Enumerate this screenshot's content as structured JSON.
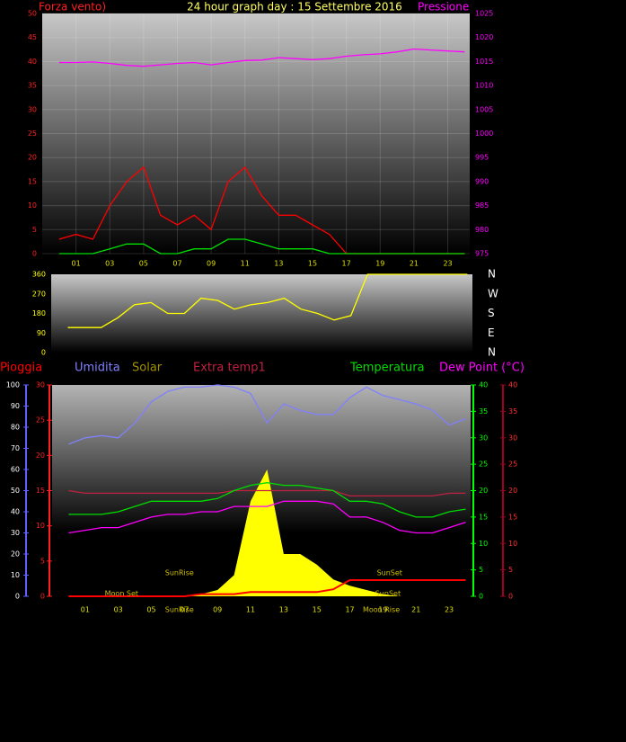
{
  "chart_data": [
    {
      "type": "line",
      "title": "24 hour graph day : 15 Settembre 2016",
      "y_label": "Forza vento)",
      "y2_label": "Pressione",
      "x": [
        0,
        1,
        2,
        3,
        4,
        5,
        6,
        7,
        8,
        9,
        10,
        11,
        12,
        13,
        14,
        15,
        16,
        17,
        18,
        19,
        20,
        21,
        22,
        23,
        24
      ],
      "xlim": [
        -1,
        24.3
      ],
      "xticks": [
        {
          "value": 1,
          "label": "01"
        },
        {
          "value": 3,
          "label": "03"
        },
        {
          "value": 5,
          "label": "05"
        },
        {
          "value": 7,
          "label": "07"
        },
        {
          "value": 9,
          "label": "09"
        },
        {
          "value": 11,
          "label": "11"
        },
        {
          "value": 13,
          "label": "13"
        },
        {
          "value": 15,
          "label": "15"
        },
        {
          "value": 17,
          "label": "17"
        },
        {
          "value": 19,
          "label": "19"
        },
        {
          "value": 21,
          "label": "21"
        },
        {
          "value": 23,
          "label": "23"
        }
      ],
      "ylim": [
        0,
        50
      ],
      "yticks": [
        0,
        5,
        10,
        15,
        20,
        25,
        30,
        35,
        40,
        45,
        50
      ],
      "y2lim": [
        975,
        1025
      ],
      "y2ticks": [
        975,
        980,
        985,
        990,
        995,
        1000,
        1005,
        1010,
        1015,
        1020,
        1025
      ],
      "grid": true,
      "series": [
        {
          "color": "#ff0000",
          "axis": "y",
          "values": [
            3,
            4,
            3,
            10,
            15,
            18,
            8,
            6,
            8,
            5,
            15,
            18,
            12,
            8,
            8,
            6,
            4,
            0,
            0,
            0,
            0,
            0,
            0,
            0,
            0
          ]
        },
        {
          "color": "#00e000",
          "axis": "y",
          "values": [
            0,
            0,
            0,
            1,
            2,
            2,
            0,
            0,
            1,
            1,
            3,
            3,
            2,
            1,
            1,
            1,
            0,
            0,
            0,
            0,
            0,
            0,
            0,
            0,
            0
          ]
        },
        {
          "color": "#ff00ff",
          "axis": "y2",
          "values": [
            1014.8,
            1014.8,
            1014.9,
            1014.6,
            1014.2,
            1014.0,
            1014.3,
            1014.6,
            1014.8,
            1014.3,
            1014.8,
            1015.2,
            1015.3,
            1015.8,
            1015.6,
            1015.4,
            1015.6,
            1016.1,
            1016.4,
            1016.6,
            1017.0,
            1017.6,
            1017.4,
            1017.2,
            1017.0
          ]
        }
      ]
    },
    {
      "type": "line",
      "x": [
        0,
        1,
        2,
        3,
        4,
        5,
        6,
        7,
        8,
        9,
        10,
        11,
        12,
        13,
        14,
        15,
        16,
        17,
        18,
        19,
        20,
        21,
        22,
        23,
        24
      ],
      "xlim": [
        -1,
        24.3
      ],
      "ylim": [
        0,
        360
      ],
      "yticks": [
        0,
        90,
        180,
        270,
        360
      ],
      "y2lim": [
        0,
        360
      ],
      "y2ticks": [
        {
          "value": 0,
          "label": "N"
        },
        {
          "value": 90,
          "label": "E"
        },
        {
          "value": 180,
          "label": "S"
        },
        {
          "value": 270,
          "label": "W"
        },
        {
          "value": 360,
          "label": "N"
        }
      ],
      "series": [
        {
          "color": "#ffff00",
          "axis": "y",
          "values": [
            115,
            115,
            115,
            160,
            220,
            230,
            180,
            180,
            250,
            240,
            200,
            220,
            230,
            250,
            200,
            180,
            150,
            170,
            360,
            360,
            360,
            360,
            360,
            360,
            360
          ]
        }
      ]
    },
    {
      "type": "line",
      "x": [
        0,
        1,
        2,
        3,
        4,
        5,
        6,
        7,
        8,
        9,
        10,
        11,
        12,
        13,
        14,
        15,
        16,
        17,
        18,
        19,
        20,
        21,
        22,
        23,
        24
      ],
      "xlim": [
        -1,
        24.3
      ],
      "xticks": [
        {
          "value": 1,
          "label": "01"
        },
        {
          "value": 3,
          "label": "03"
        },
        {
          "value": 5,
          "label": "05"
        },
        {
          "value": 7,
          "label": "07"
        },
        {
          "value": 9,
          "label": "09"
        },
        {
          "value": 11,
          "label": "11"
        },
        {
          "value": 13,
          "label": "13"
        },
        {
          "value": 15,
          "label": "15"
        },
        {
          "value": 17,
          "label": "17"
        },
        {
          "value": 19,
          "label": "19"
        },
        {
          "value": 21,
          "label": "21"
        },
        {
          "value": 23,
          "label": "23"
        }
      ],
      "ylim": [
        0,
        100
      ],
      "yticks": [
        0,
        10,
        20,
        30,
        40,
        50,
        60,
        70,
        80,
        90,
        100
      ],
      "y3lim": [
        0,
        30
      ],
      "y3ticks": [
        0,
        5,
        10,
        15,
        20,
        25,
        30
      ],
      "y2lim": [
        0,
        40
      ],
      "y2ticks": [
        0,
        5,
        10,
        15,
        20,
        25,
        30,
        35,
        40
      ],
      "y4lim": [
        0,
        40
      ],
      "y4ticks": [
        0,
        5,
        10,
        15,
        20,
        25,
        30,
        35,
        40
      ],
      "series": [
        {
          "name": "Solar",
          "color": "#a09000",
          "fill": "#ffff00",
          "axis": "y",
          "values": [
            0,
            0,
            0,
            0,
            0,
            0,
            0,
            0,
            1,
            3,
            10,
            45,
            60,
            20,
            20,
            15,
            8,
            5,
            3,
            1,
            0,
            0,
            0,
            0,
            0
          ]
        },
        {
          "name": "Pioggia",
          "color": "#ff0000",
          "axis": "y3",
          "values": [
            0,
            0,
            0,
            0,
            0,
            0,
            0,
            0,
            0.3,
            0.3,
            0.3,
            0.6,
            0.6,
            0.6,
            0.6,
            0.6,
            1,
            2.3,
            2.3,
            2.3,
            2.3,
            2.3,
            2.3,
            2.3,
            2.3
          ]
        },
        {
          "name": "Umidita",
          "color": "#8080ff",
          "axis": "y",
          "values": [
            72,
            75,
            76,
            75,
            82,
            92,
            97,
            99,
            99,
            100,
            99,
            96,
            82,
            91,
            88,
            86,
            86,
            94,
            99,
            95,
            93,
            91,
            88,
            81,
            84
          ]
        },
        {
          "name": "Extra temp1",
          "color": "#c02040",
          "axis": "y2",
          "values": [
            20,
            19.5,
            19.5,
            19.5,
            19.5,
            19.5,
            19.5,
            19.5,
            19.5,
            19.5,
            20,
            20,
            20,
            20,
            20,
            20,
            20,
            19,
            19,
            19,
            19,
            19,
            19,
            19.5,
            19.5
          ]
        },
        {
          "name": "Temperatura",
          "color": "#00dd00",
          "axis": "y2",
          "values": [
            15.5,
            15.5,
            15.5,
            16,
            17,
            18,
            18,
            18,
            18,
            18.5,
            20,
            21,
            21.5,
            21,
            21,
            20.5,
            20,
            18,
            18,
            17.5,
            16,
            15,
            15,
            16,
            16.5
          ]
        },
        {
          "name": "Dew Point (°C)",
          "color": "#ff00ff",
          "axis": "y4",
          "values": [
            12,
            12.5,
            13,
            13,
            14,
            15,
            15.5,
            15.5,
            16,
            16,
            17,
            17,
            17,
            18,
            18,
            18,
            17.5,
            15,
            15,
            14,
            12.5,
            12,
            12,
            13,
            14
          ]
        }
      ],
      "annotations": [
        {
          "text": "SunRise",
          "x": 6.7
        },
        {
          "text": "SunSet",
          "x": 19.4
        },
        {
          "text": "Moon Set",
          "x": 3.2
        },
        {
          "text": "SunRise",
          "x": 6.7
        },
        {
          "text": "Moon Rise",
          "x": 18.9
        },
        {
          "text": "SunSet",
          "x": 19.3
        }
      ]
    }
  ]
}
